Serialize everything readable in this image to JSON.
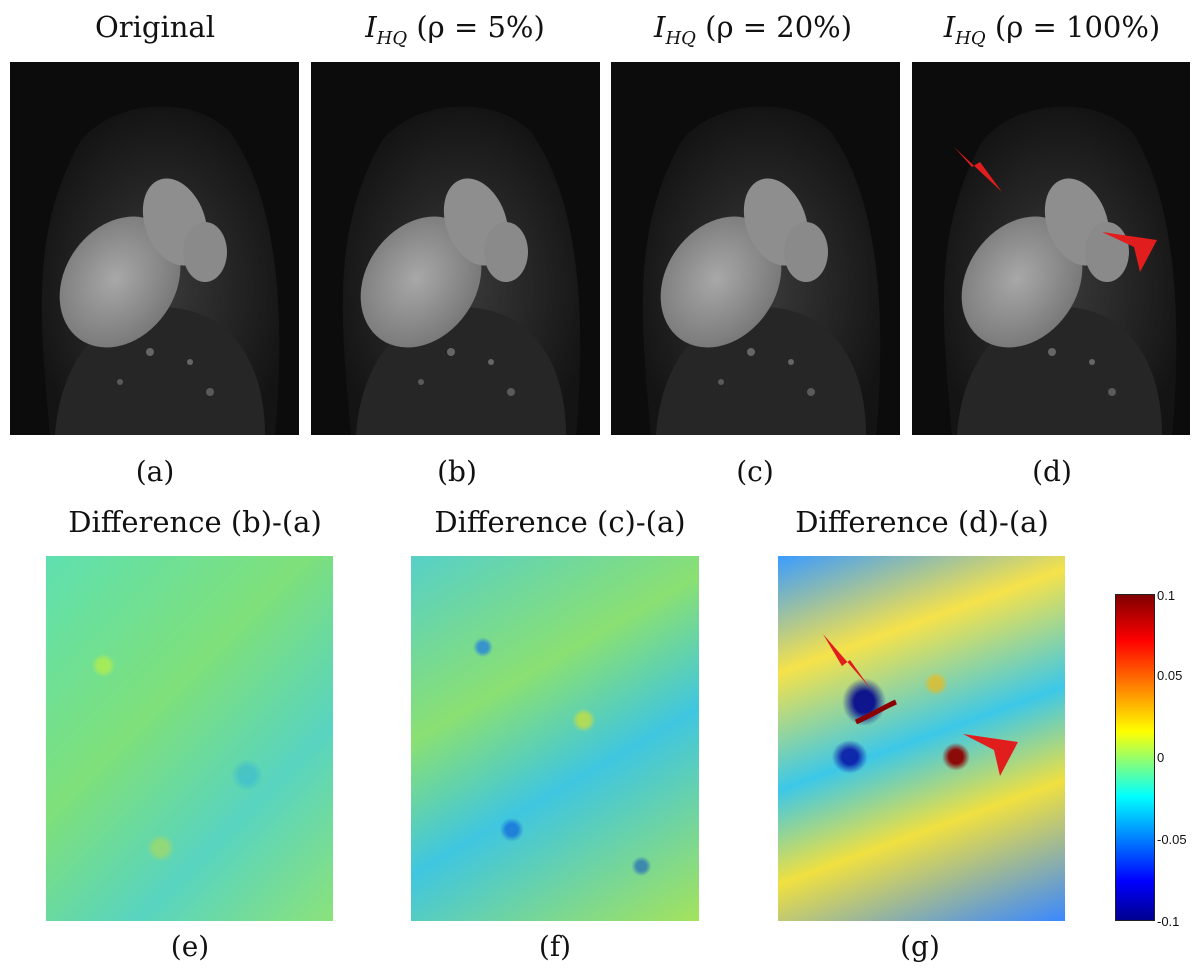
{
  "top_titles": {
    "a": "Original",
    "b_prefix": "I",
    "b_sub": "HQ",
    "b_suffix": " (ρ = 5%)",
    "c_prefix": "I",
    "c_sub": "HQ",
    "c_suffix": " (ρ = 20%)",
    "d_prefix": "I",
    "d_sub": "HQ",
    "d_suffix": " (ρ = 100%)"
  },
  "captions": [
    "(a)",
    "(b)",
    "(c)",
    "(d)",
    "(e)",
    "(f)",
    "(g)"
  ],
  "diff_titles": [
    "Difference (b)-(a)",
    "Difference (c)-(a)",
    "Difference (d)-(a)"
  ],
  "colorbar": {
    "ticks": [
      "0.1",
      "0.05",
      "0",
      "-0.05",
      "-0.1"
    ],
    "range": [
      -0.1,
      0.1
    ]
  },
  "colors": {
    "arrow": "#e11d1d"
  },
  "icons": [
    "arrowhead-marker-icon"
  ]
}
